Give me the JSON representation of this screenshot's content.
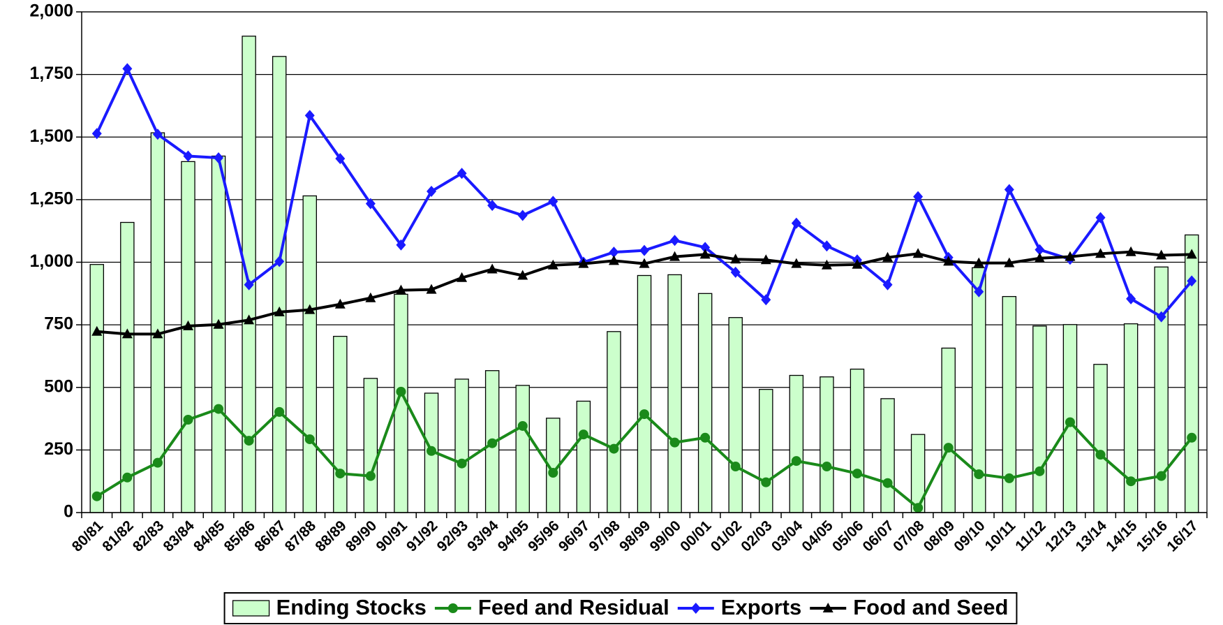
{
  "chart_data": {
    "type": "bar",
    "categories": [
      "80/81",
      "81/82",
      "82/83",
      "83/84",
      "84/85",
      "85/86",
      "86/87",
      "87/88",
      "88/89",
      "89/90",
      "90/91",
      "91/92",
      "92/93",
      "93/94",
      "94/95",
      "95/96",
      "96/97",
      "97/98",
      "98/99",
      "99/00",
      "00/01",
      "01/02",
      "02/03",
      "03/04",
      "04/05",
      "05/06",
      "06/07",
      "07/08",
      "08/09",
      "09/10",
      "10/11",
      "11/12",
      "12/13",
      "13/14",
      "14/15",
      "15/16",
      "16/17"
    ],
    "series": [
      {
        "name": "Ending Stocks",
        "type": "bar",
        "color": "#ccffcc",
        "values": [
          991,
          1159,
          1517,
          1402,
          1424,
          1903,
          1822,
          1265,
          704,
          536,
          872,
          477,
          533,
          567,
          508,
          377,
          445,
          723,
          947,
          950,
          875,
          779,
          492,
          548,
          542,
          573,
          455,
          312,
          657,
          978,
          863,
          745,
          751,
          592,
          754,
          981,
          1109
        ]
      },
      {
        "name": "Feed and Residual",
        "type": "line",
        "marker": "circle",
        "color": "#1a8a1a",
        "values": [
          65,
          140,
          199,
          371,
          414,
          287,
          402,
          293,
          156,
          146,
          483,
          246,
          196,
          277,
          346,
          159,
          312,
          255,
          393,
          280,
          299,
          184,
          121,
          206,
          184,
          156,
          118,
          19,
          259,
          153,
          137,
          165,
          361,
          231,
          125,
          146,
          299
        ]
      },
      {
        "name": "Exports",
        "type": "line",
        "marker": "diamond",
        "color": "#1a1aff",
        "values": [
          1514,
          1773,
          1511,
          1424,
          1417,
          910,
          1003,
          1586,
          1414,
          1234,
          1069,
          1283,
          1355,
          1227,
          1187,
          1243,
          1000,
          1040,
          1047,
          1087,
          1059,
          960,
          850,
          1156,
          1065,
          1009,
          910,
          1262,
          1019,
          882,
          1290,
          1050,
          1012,
          1178,
          854,
          782,
          925
        ]
      },
      {
        "name": "Food and Seed",
        "type": "line",
        "marker": "triangle",
        "color": "#000000",
        "values": [
          723,
          713,
          713,
          745,
          751,
          769,
          801,
          810,
          832,
          857,
          888,
          891,
          938,
          972,
          947,
          988,
          994,
          1006,
          994,
          1022,
          1031,
          1012,
          1009,
          994,
          988,
          991,
          1019,
          1034,
          1003,
          997,
          997,
          1016,
          1022,
          1034,
          1041,
          1028,
          1031
        ]
      }
    ],
    "ylim": [
      0,
      2000
    ],
    "yticks": [
      0,
      250,
      500,
      750,
      {
        "value": 1000,
        "label": "1,000"
      },
      {
        "value": 1250,
        "label": "1,250"
      },
      {
        "value": 1500,
        "label": "1,500"
      },
      {
        "value": 1750,
        "label": "1,750"
      },
      {
        "value": 2000,
        "label": "2,000"
      }
    ],
    "grid": true,
    "legend": "bottom"
  }
}
